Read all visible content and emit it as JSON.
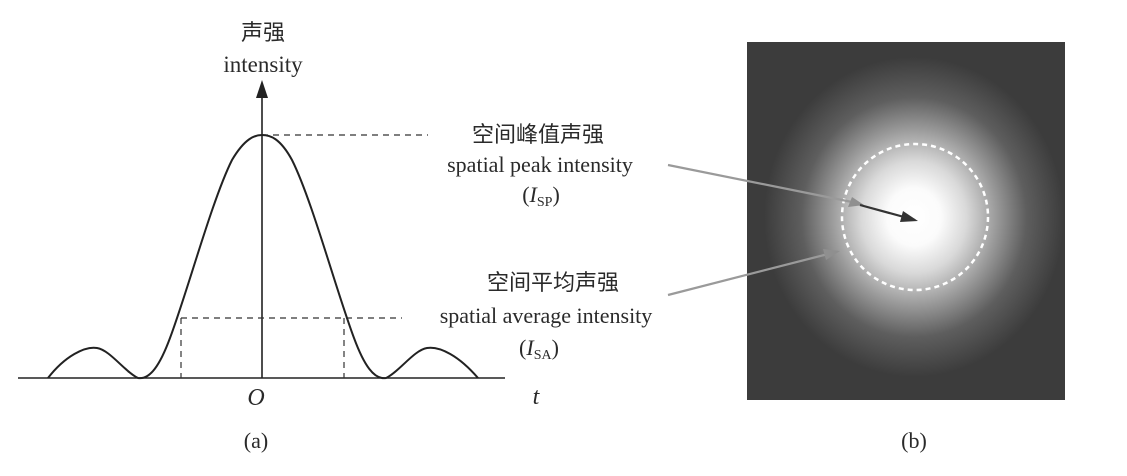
{
  "panel_a": {
    "y_label_cn": "声强",
    "y_label_en": "intensity",
    "origin_label": "O",
    "x_label": "t",
    "caption": "(a)"
  },
  "annotations": {
    "peak": {
      "cn": "空间峰值声强",
      "en": "spatial peak intensity",
      "symbol_main": "I",
      "symbol_sub": "SP",
      "open": "(",
      "close": ")"
    },
    "average": {
      "cn": "空间平均声强",
      "en": "spatial average intensity",
      "symbol_main": "I",
      "symbol_sub": "SA",
      "open": "(",
      "close": ")"
    }
  },
  "panel_b": {
    "caption": "(b)",
    "background_color": "#3c3c3c",
    "glow_color": "#ffffff",
    "dashed_circle_color": "#ffffff"
  }
}
